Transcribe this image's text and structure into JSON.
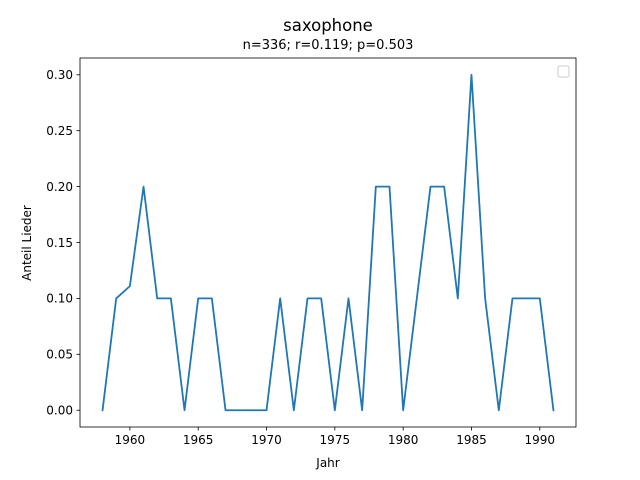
{
  "chart_data": {
    "type": "line",
    "title": "saxophone",
    "subtitle": "n=336; r=0.119; p=0.503",
    "xlabel": "Jahr",
    "ylabel": "Anteil Lieder",
    "xlim": [
      1956.35,
      1992.65
    ],
    "ylim": [
      -0.015,
      0.315
    ],
    "xticks": [
      1960,
      1965,
      1970,
      1975,
      1980,
      1985,
      1990
    ],
    "xtick_labels": [
      "1960",
      "1965",
      "1970",
      "1975",
      "1980",
      "1985",
      "1990"
    ],
    "yticks": [
      0.0,
      0.05,
      0.1,
      0.15,
      0.2,
      0.25,
      0.3
    ],
    "ytick_labels": [
      "0.00",
      "0.05",
      "0.10",
      "0.15",
      "0.20",
      "0.25",
      "0.30"
    ],
    "grid": false,
    "legend": {
      "placement": "top-right",
      "entries": []
    },
    "series": [
      {
        "color": "#1f77b4",
        "x": [
          1958,
          1959,
          1960,
          1961,
          1962,
          1963,
          1964,
          1965,
          1966,
          1967,
          1968,
          1969,
          1970,
          1971,
          1972,
          1973,
          1974,
          1975,
          1976,
          1977,
          1978,
          1979,
          1980,
          1981,
          1982,
          1983,
          1984,
          1985,
          1986,
          1987,
          1988,
          1989,
          1990,
          1991
        ],
        "y": [
          0.0,
          0.1,
          0.111,
          0.2,
          0.1,
          0.1,
          0.0,
          0.1,
          0.1,
          0.0,
          0.0,
          0.0,
          0.0,
          0.1,
          0.0,
          0.1,
          0.1,
          0.0,
          0.1,
          0.0,
          0.2,
          0.2,
          0.0,
          0.1,
          0.2,
          0.2,
          0.1,
          0.3,
          0.1,
          0.0,
          0.1,
          0.1,
          0.1,
          0.0
        ]
      }
    ]
  }
}
